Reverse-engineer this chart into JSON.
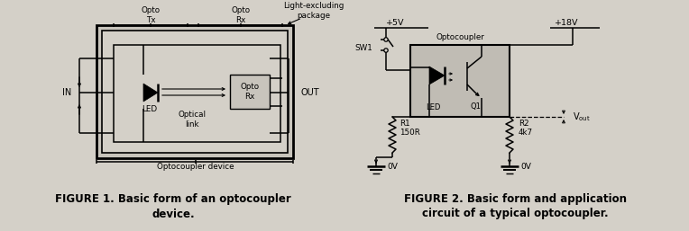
{
  "bg_color": "#d4d0c8",
  "fg_color": "#000000",
  "fig1_cap1": "FIGURE 1. Basic form of an optocoupler",
  "fig1_cap2": "device.",
  "fig2_cap1": "FIGURE 2. Basic form and application",
  "fig2_cap2": "circuit of a typical optocoupler.",
  "fig_width": 7.64,
  "fig_height": 2.57,
  "dpi": 100
}
